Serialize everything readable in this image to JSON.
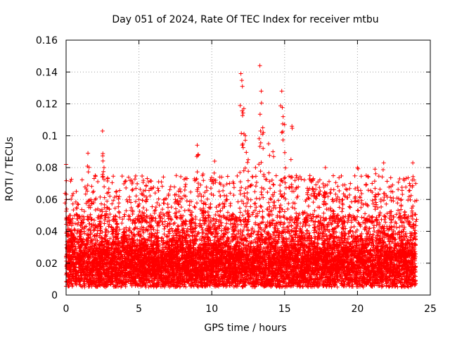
{
  "chart_data": {
    "type": "scatter",
    "title": "Day 051 of 2024, Rate Of TEC Index for receiver mtbu",
    "xlabel": "GPS time / hours",
    "ylabel": "ROTI / TECUs",
    "xlim": [
      0,
      25
    ],
    "ylim": [
      0,
      0.16
    ],
    "xticks": [
      0,
      5,
      10,
      15,
      20,
      25
    ],
    "yticks": [
      0,
      0.02,
      0.04,
      0.06,
      0.08,
      0.1,
      0.12,
      0.14,
      0.16
    ],
    "xtick_labels": [
      "0",
      "5",
      "10",
      "15",
      "20",
      "25"
    ],
    "ytick_labels": [
      "0",
      "0.02",
      "0.04",
      "0.06",
      "0.08",
      "0.1",
      "0.12",
      "0.14",
      "0.16"
    ],
    "grid": true,
    "marker": "+",
    "marker_color": "#ff0000",
    "series": [
      {
        "name": "ROTI",
        "sample_points": [
          [
            0.0,
            0.082
          ],
          [
            0.1,
            0.02
          ],
          [
            0.3,
            0.05
          ],
          [
            0.5,
            0.035
          ],
          [
            0.7,
            0.065
          ],
          [
            1.0,
            0.03
          ],
          [
            1.5,
            0.089
          ],
          [
            1.7,
            0.06
          ],
          [
            2.0,
            0.075
          ],
          [
            2.3,
            0.045
          ],
          [
            2.5,
            0.103
          ],
          [
            2.6,
            0.08
          ],
          [
            2.8,
            0.055
          ],
          [
            3.2,
            0.04
          ],
          [
            3.5,
            0.045
          ],
          [
            4.0,
            0.035
          ],
          [
            4.5,
            0.03
          ],
          [
            5.0,
            0.06
          ],
          [
            5.3,
            0.072
          ],
          [
            5.8,
            0.05
          ],
          [
            6.3,
            0.067
          ],
          [
            7.0,
            0.055
          ],
          [
            7.5,
            0.06
          ],
          [
            8.0,
            0.045
          ],
          [
            8.6,
            0.05
          ],
          [
            9.0,
            0.094
          ],
          [
            9.4,
            0.076
          ],
          [
            9.8,
            0.055
          ],
          [
            10.2,
            0.084
          ],
          [
            10.5,
            0.065
          ],
          [
            11.0,
            0.06
          ],
          [
            11.5,
            0.07
          ],
          [
            12.0,
            0.139
          ],
          [
            12.1,
            0.131
          ],
          [
            12.2,
            0.117
          ],
          [
            12.3,
            0.1
          ],
          [
            12.5,
            0.085
          ],
          [
            13.0,
            0.08
          ],
          [
            13.3,
            0.144
          ],
          [
            13.4,
            0.128
          ],
          [
            13.5,
            0.105
          ],
          [
            13.9,
            0.095
          ],
          [
            14.2,
            0.09
          ],
          [
            14.8,
            0.128
          ],
          [
            14.9,
            0.112
          ],
          [
            15.0,
            0.107
          ],
          [
            15.5,
            0.106
          ],
          [
            15.8,
            0.075
          ],
          [
            16.5,
            0.06
          ],
          [
            17.0,
            0.065
          ],
          [
            17.8,
            0.08
          ],
          [
            18.3,
            0.06
          ],
          [
            19.0,
            0.069
          ],
          [
            19.5,
            0.055
          ],
          [
            20.0,
            0.08
          ],
          [
            20.6,
            0.075
          ],
          [
            21.2,
            0.079
          ],
          [
            21.8,
            0.083
          ],
          [
            22.3,
            0.065
          ],
          [
            23.0,
            0.06
          ],
          [
            23.8,
            0.083
          ],
          [
            24.0,
            0.07
          ]
        ],
        "bulk_range": {
          "ymin": 0.005,
          "ymax": 0.05,
          "typical": 0.02
        }
      }
    ]
  }
}
